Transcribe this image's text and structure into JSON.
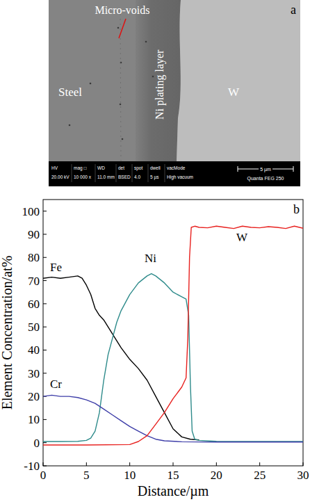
{
  "micrograph": {
    "panel_label": "a",
    "labels": {
      "voids": "Micro-voids",
      "steel": "Steel",
      "ni_layer": "Ni plating layer",
      "w": "W"
    },
    "databar": {
      "fields": [
        {
          "label": "HV",
          "value": "20.00 kV"
        },
        {
          "label": "mag □",
          "value": "10 000 x"
        },
        {
          "label": "WD",
          "value": "11.0 mm"
        },
        {
          "label": "det",
          "value": "BSED"
        },
        {
          "label": "spot",
          "value": "4.0"
        },
        {
          "label": "dwell",
          "value": "5 µs"
        },
        {
          "label": "vacMode",
          "value": "High vacuum"
        }
      ],
      "scale": "5 µm",
      "instrument": "Quanta FEG 250"
    }
  },
  "chart_data": {
    "type": "line",
    "annotations": [
      {
        "text": "b"
      }
    ],
    "x_label": "Distance/µm",
    "y_label": "Element Concentration/at%",
    "xlim": [
      0,
      30
    ],
    "ylim": [
      -10,
      105
    ],
    "xticks": [
      0,
      5,
      10,
      15,
      20,
      25,
      30
    ],
    "yticks": [
      -10,
      0,
      10,
      20,
      30,
      40,
      50,
      60,
      70,
      80,
      90,
      100
    ],
    "series": [
      {
        "name": "Fe",
        "color": "#000000",
        "x": [
          0,
          1,
          2,
          3,
          4,
          4.5,
          5,
          5.5,
          6,
          6.5,
          7,
          7.5,
          8,
          9,
          10,
          11,
          12,
          13,
          14,
          15,
          16,
          17,
          18
        ],
        "values": [
          71,
          71.5,
          71,
          71.5,
          72,
          71,
          68,
          64,
          58,
          55,
          53,
          50,
          47,
          41,
          36,
          32,
          27,
          20,
          13,
          6,
          2.5,
          1.5,
          1.2
        ]
      },
      {
        "name": "Ni",
        "color": "#2e8b8b",
        "x": [
          0,
          2,
          4,
          5,
          5.5,
          6,
          6.5,
          7,
          7.5,
          8,
          8.5,
          9,
          10,
          11,
          12,
          12.5,
          13,
          14,
          15,
          16,
          16.5,
          16.8,
          17,
          17.2,
          17.5,
          18,
          20,
          25,
          30
        ],
        "values": [
          0.5,
          0.5,
          0.6,
          1,
          2,
          5,
          13,
          27,
          38,
          45,
          52,
          57,
          64,
          69,
          72,
          73,
          72,
          69,
          65,
          63,
          62,
          55,
          25,
          5,
          1.5,
          1,
          0.6,
          0.5,
          0.5
        ]
      },
      {
        "name": "Cr",
        "color": "#3d3da8",
        "x": [
          0,
          1,
          2,
          3,
          4,
          5,
          6,
          7,
          8,
          9,
          10,
          11,
          12,
          13,
          14,
          16,
          20,
          25,
          30
        ],
        "values": [
          20,
          20.5,
          20,
          20,
          19.5,
          18.5,
          17,
          14.5,
          12,
          9.5,
          7,
          5,
          3,
          1.5,
          0.8,
          0.4,
          0.3,
          0.3,
          0.3
        ]
      },
      {
        "name": "W",
        "color": "#e8201e",
        "x": [
          0,
          5,
          10,
          11,
          12,
          13,
          14,
          15,
          16,
          16.5,
          16.7,
          16.9,
          17.1,
          17.5,
          18,
          19,
          20,
          21,
          22,
          23,
          24,
          25,
          26,
          27,
          28,
          29,
          30
        ],
        "values": [
          -1,
          -1,
          -0.8,
          0.5,
          3,
          8,
          13,
          19,
          24,
          28,
          45,
          80,
          93,
          93.5,
          93,
          92.8,
          93.5,
          93,
          92.5,
          93.5,
          93,
          92.8,
          93.3,
          93,
          92.5,
          93.5,
          92.6
        ]
      }
    ]
  }
}
